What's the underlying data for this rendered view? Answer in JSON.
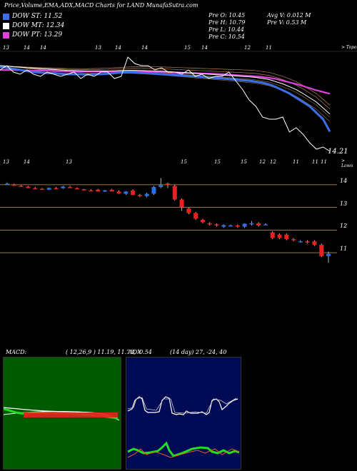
{
  "header": {
    "title": "Price,Volume,EMA,ADX,MACD Charts for LAND",
    "site": "MunafaSutra.com"
  },
  "legend": [
    {
      "label": "DOW ST: 11.52",
      "color": "#3b6ee8"
    },
    {
      "label": "DOW MT: 12.34",
      "color": "#ffffff"
    },
    {
      "label": "DOW PT: 13.29",
      "color": "#e040e0"
    }
  ],
  "stats": {
    "open": "Pre  O: 10.45",
    "high": "Pre  H: 10.79",
    "low": "Pre  L: 10.44",
    "close": "Pre  C: 10.54",
    "avg_vol": "Avg V: 0.012  M",
    "pre_vol": "Pre  V: 0.53  M"
  },
  "top_chart": {
    "date_labels": [
      "13",
      "14",
      "14",
      "13",
      "14",
      "14",
      "15",
      "14",
      "12",
      "11"
    ],
    "corner_label": "> Topo",
    "last_value_label": "14.21"
  },
  "candle_chart": {
    "date_labels": [
      "13",
      "14",
      "13",
      "15",
      "15",
      "15",
      "12",
      "12",
      "11",
      "11",
      "11"
    ],
    "corner_label": "> Lowo",
    "price_labels": [
      "14",
      "13",
      "12",
      "11"
    ],
    "price_levels": [
      14,
      13,
      12,
      11
    ]
  },
  "macd": {
    "label": "MACD:",
    "values": "( 12,26,9 ) 11.19, 11.73, -0.54"
  },
  "adx": {
    "label": "ADX",
    "values": "(14  day) 27, -24, 40"
  },
  "colors": {
    "st": "#3b6ee8",
    "mt": "#ffffff",
    "pt": "#e040e0",
    "up": "#2e6be6",
    "down": "#e8201e",
    "macd_bg": "#005a00",
    "adx_bg": "#000a55"
  },
  "chart_data": [
    {
      "type": "line",
      "x": [
        1,
        2,
        3,
        4,
        5,
        6,
        7,
        8,
        9,
        10,
        11,
        12,
        13,
        14,
        15,
        16,
        17,
        18,
        19,
        20,
        21,
        22,
        23,
        24,
        25,
        26,
        27,
        28,
        29,
        30,
        31,
        32,
        33,
        34,
        35,
        36,
        37,
        38,
        39,
        40,
        41,
        42,
        43,
        44,
        45,
        46,
        47,
        48,
        49,
        50
      ],
      "series": [
        {
          "name": "DOW ST: 11.52",
          "values": [
            14.55,
            14.5,
            14.45,
            14.4,
            14.35,
            14.3,
            14.28,
            14.25,
            14.25,
            14.22,
            14.2,
            14.2,
            14.2,
            14.18,
            14.2,
            14.2,
            14.22,
            14.25,
            14.28,
            14.3,
            14.28,
            14.26,
            14.24,
            14.22,
            14.2,
            14.18,
            14.16,
            14.14,
            14.12,
            14.1,
            14.08,
            14.05,
            14.02,
            14.0,
            13.98,
            13.95,
            13.92,
            13.9,
            13.85,
            13.8,
            13.72,
            13.6,
            13.45,
            13.3,
            13.1,
            12.9,
            12.7,
            12.4,
            12.1,
            11.52
          ]
        },
        {
          "name": "DOW MT: 12.34",
          "values": [
            14.6,
            14.58,
            14.55,
            14.53,
            14.5,
            14.48,
            14.46,
            14.44,
            14.42,
            14.4,
            14.38,
            14.37,
            14.36,
            14.35,
            14.35,
            14.35,
            14.35,
            14.36,
            14.37,
            14.38,
            14.38,
            14.37,
            14.36,
            14.35,
            14.34,
            14.32,
            14.3,
            14.28,
            14.26,
            14.24,
            14.22,
            14.2,
            14.18,
            14.16,
            14.14,
            14.12,
            14.1,
            14.08,
            14.05,
            14.0,
            13.95,
            13.85,
            13.75,
            13.62,
            13.48,
            13.3,
            13.1,
            12.9,
            12.62,
            12.34
          ]
        },
        {
          "name": "DOW PT: 13.29",
          "values": [
            14.4,
            14.4,
            14.4,
            14.39,
            14.38,
            14.37,
            14.37,
            14.36,
            14.35,
            14.34,
            14.34,
            14.33,
            14.33,
            14.33,
            14.33,
            14.33,
            14.33,
            14.33,
            14.33,
            14.33,
            14.33,
            14.32,
            14.32,
            14.31,
            14.3,
            14.29,
            14.28,
            14.27,
            14.26,
            14.25,
            14.24,
            14.23,
            14.22,
            14.2,
            14.18,
            14.16,
            14.14,
            14.12,
            14.1,
            14.07,
            14.03,
            13.98,
            13.9,
            13.82,
            13.74,
            13.65,
            13.55,
            13.45,
            13.37,
            13.29
          ]
        }
      ]
    },
    {
      "type": "bar",
      "subtype": "candlestick",
      "ylim": [
        10.5,
        14.5
      ],
      "candles": [
        {
          "o": 14.05,
          "h": 14.1,
          "l": 14.0,
          "c": 14.05
        },
        {
          "o": 14.0,
          "h": 14.05,
          "l": 13.95,
          "c": 13.98
        },
        {
          "o": 13.95,
          "h": 13.98,
          "l": 13.9,
          "c": 13.92
        },
        {
          "o": 13.92,
          "h": 13.95,
          "l": 13.85,
          "c": 13.85
        },
        {
          "o": 13.85,
          "h": 13.9,
          "l": 13.8,
          "c": 13.8
        },
        {
          "o": 13.82,
          "h": 13.86,
          "l": 13.78,
          "c": 13.8
        },
        {
          "o": 13.78,
          "h": 13.88,
          "l": 13.76,
          "c": 13.86
        },
        {
          "o": 13.85,
          "h": 13.9,
          "l": 13.8,
          "c": 13.82
        },
        {
          "o": 13.85,
          "h": 13.95,
          "l": 13.82,
          "c": 13.92
        },
        {
          "o": 13.9,
          "h": 13.95,
          "l": 13.85,
          "c": 13.85
        },
        {
          "o": 13.85,
          "h": 13.88,
          "l": 13.8,
          "c": 13.8
        },
        {
          "o": 13.8,
          "h": 13.82,
          "l": 13.75,
          "c": 13.75
        },
        {
          "o": 13.75,
          "h": 13.8,
          "l": 13.72,
          "c": 13.72
        },
        {
          "o": 13.78,
          "h": 13.82,
          "l": 13.7,
          "c": 13.7
        },
        {
          "o": 13.7,
          "h": 13.78,
          "l": 13.68,
          "c": 13.75
        },
        {
          "o": 13.78,
          "h": 13.82,
          "l": 13.7,
          "c": 13.7
        },
        {
          "o": 13.7,
          "h": 13.75,
          "l": 13.6,
          "c": 13.62
        },
        {
          "o": 13.6,
          "h": 13.72,
          "l": 13.55,
          "c": 13.7
        },
        {
          "o": 13.75,
          "h": 13.8,
          "l": 13.55,
          "c": 13.55
        },
        {
          "o": 13.55,
          "h": 13.6,
          "l": 13.45,
          "c": 13.5
        },
        {
          "o": 13.5,
          "h": 13.65,
          "l": 13.45,
          "c": 13.6
        },
        {
          "o": 13.6,
          "h": 13.95,
          "l": 13.55,
          "c": 13.9
        },
        {
          "o": 13.9,
          "h": 14.3,
          "l": 13.85,
          "c": 14.0
        },
        {
          "o": 14.05,
          "h": 14.1,
          "l": 13.85,
          "c": 14.0
        },
        {
          "o": 13.95,
          "h": 14.0,
          "l": 13.3,
          "c": 13.35
        },
        {
          "o": 13.35,
          "h": 13.4,
          "l": 12.85,
          "c": 13.0
        },
        {
          "o": 12.95,
          "h": 13.0,
          "l": 12.7,
          "c": 12.75
        },
        {
          "o": 12.75,
          "h": 12.8,
          "l": 12.45,
          "c": 12.5
        },
        {
          "o": 12.45,
          "h": 12.5,
          "l": 12.3,
          "c": 12.35
        },
        {
          "o": 12.3,
          "h": 12.35,
          "l": 12.2,
          "c": 12.25
        },
        {
          "o": 12.25,
          "h": 12.3,
          "l": 12.15,
          "c": 12.2
        },
        {
          "o": 12.15,
          "h": 12.25,
          "l": 12.1,
          "c": 12.22
        },
        {
          "o": 12.2,
          "h": 12.25,
          "l": 12.15,
          "c": 12.2
        },
        {
          "o": 12.2,
          "h": 12.25,
          "l": 12.1,
          "c": 12.15
        },
        {
          "o": 12.15,
          "h": 12.3,
          "l": 12.1,
          "c": 12.28
        },
        {
          "o": 12.28,
          "h": 12.4,
          "l": 12.2,
          "c": 12.3
        },
        {
          "o": 12.3,
          "h": 12.35,
          "l": 12.15,
          "c": 12.2
        },
        {
          "o": 12.25,
          "h": 12.3,
          "l": 12.2,
          "c": 12.25
        },
        {
          "o": 11.9,
          "h": 11.95,
          "l": 11.6,
          "c": 11.65
        },
        {
          "o": 11.8,
          "h": 11.85,
          "l": 11.6,
          "c": 11.65
        },
        {
          "o": 11.8,
          "h": 11.85,
          "l": 11.55,
          "c": 11.6
        },
        {
          "o": 11.6,
          "h": 11.65,
          "l": 11.5,
          "c": 11.55
        },
        {
          "o": 11.5,
          "h": 11.55,
          "l": 11.45,
          "c": 11.5
        },
        {
          "o": 11.5,
          "h": 11.55,
          "l": 11.4,
          "c": 11.45
        },
        {
          "o": 11.5,
          "h": 11.55,
          "l": 11.3,
          "c": 11.35
        },
        {
          "o": 11.35,
          "h": 11.4,
          "l": 10.8,
          "c": 10.85
        },
        {
          "o": 10.85,
          "h": 11.05,
          "l": 10.55,
          "c": 10.95
        }
      ]
    }
  ]
}
